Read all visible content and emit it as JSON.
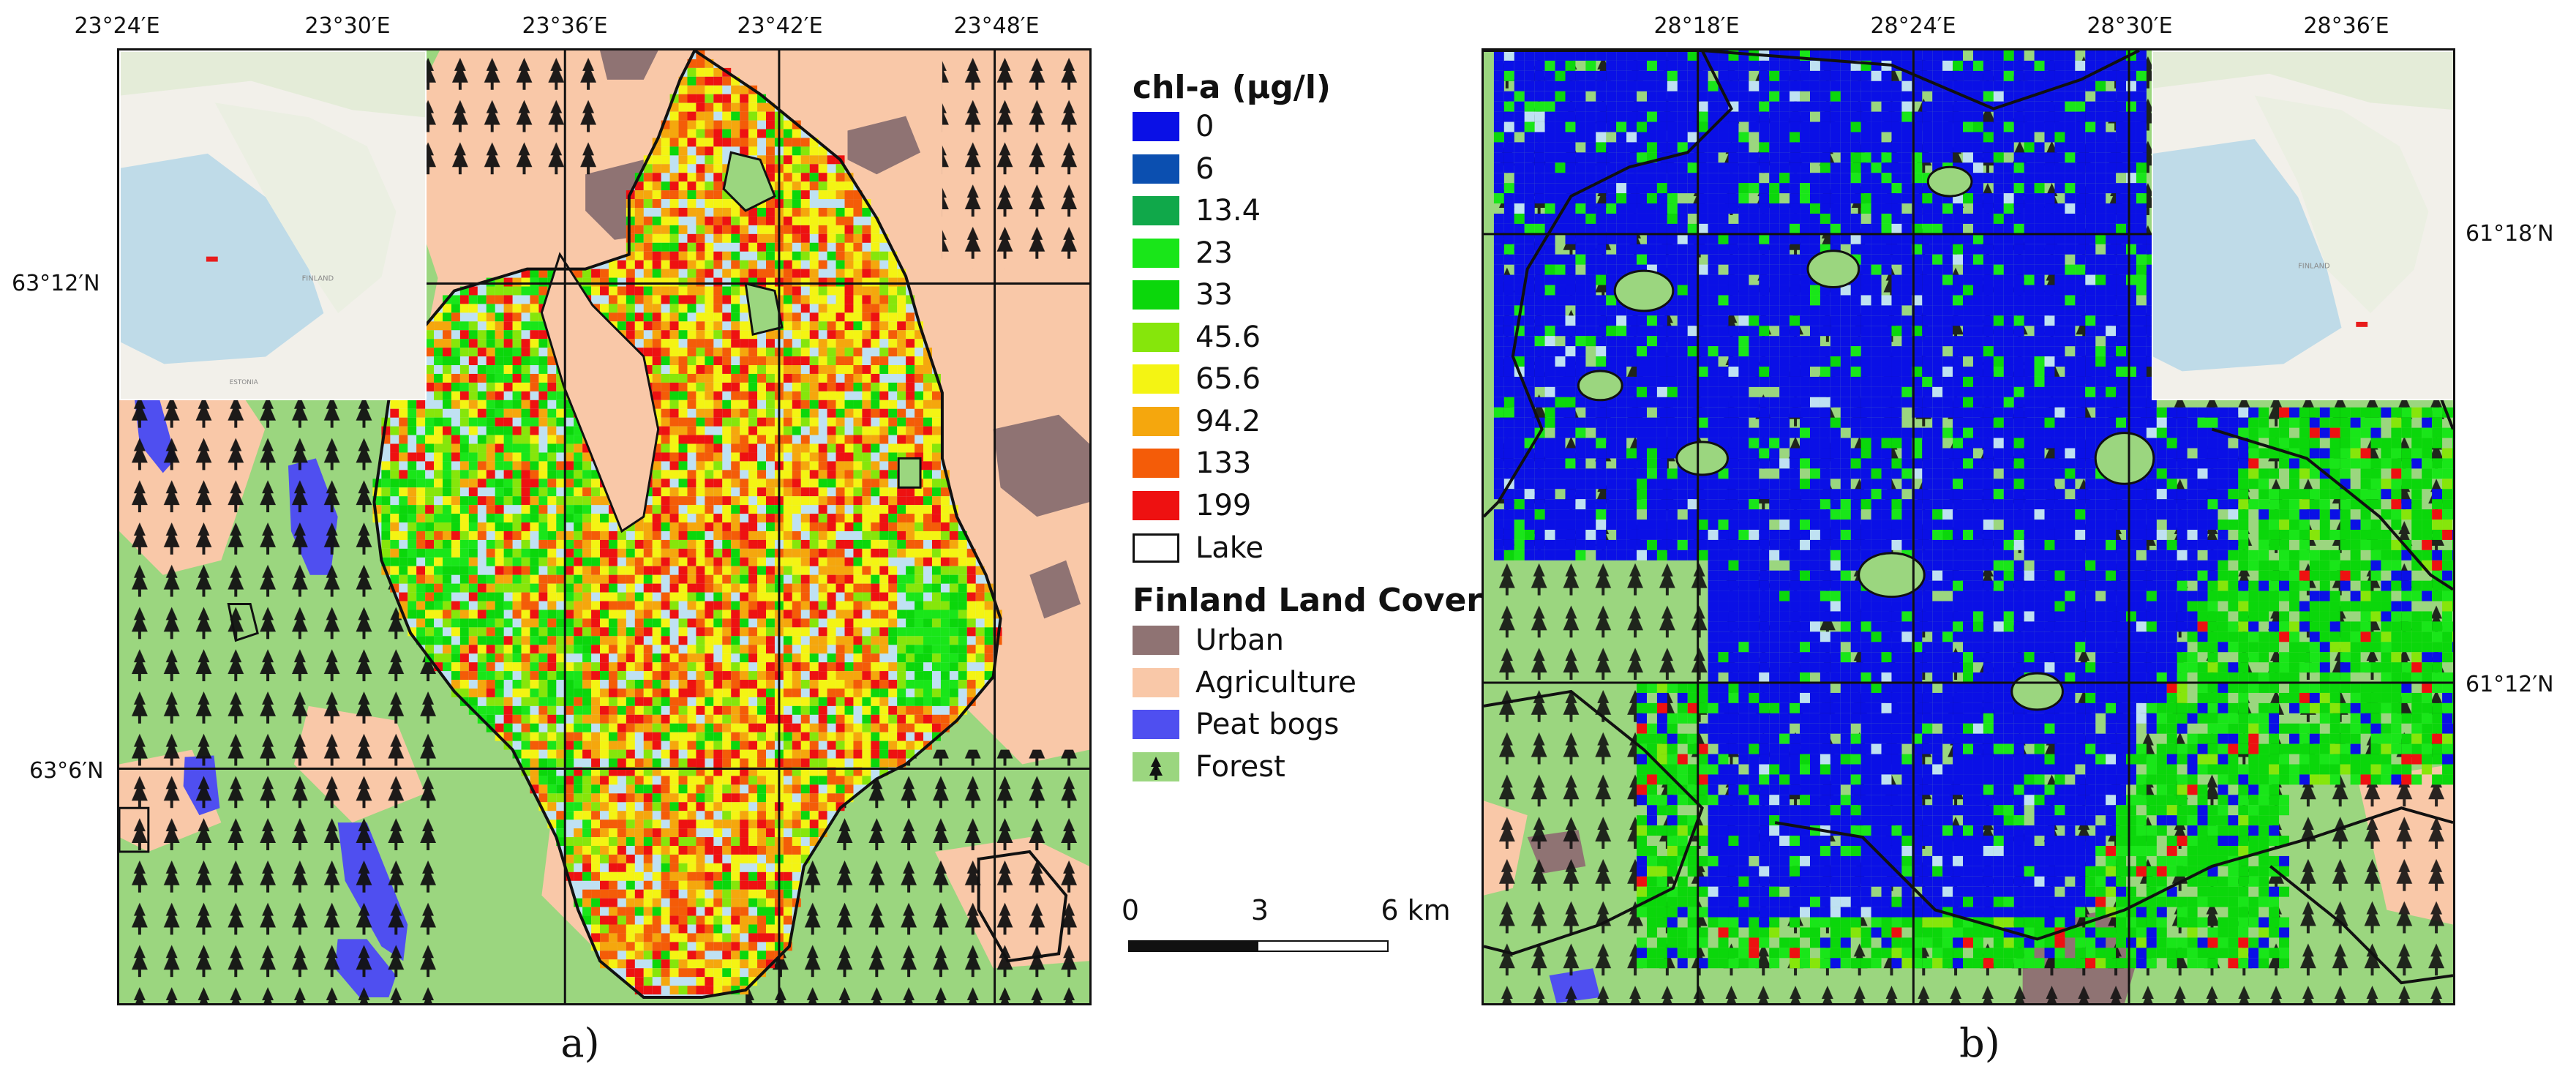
{
  "panels": {
    "a": {
      "label": "a)",
      "top_ticks": [
        "23°24′E",
        "23°30′E",
        "23°36′E",
        "23°42′E",
        "23°48′E"
      ],
      "left_ticks": [
        "63°12′N",
        "63°6′N"
      ]
    },
    "b": {
      "label": "b)",
      "top_ticks": [
        "28°18′E",
        "28°24′E",
        "28°30′E",
        "28°36′E"
      ],
      "right_ticks": [
        "61°18′N",
        "61°12′N"
      ]
    }
  },
  "legend": {
    "chl_title": "chl-a (μg/l)",
    "chl_classes": [
      {
        "label": "0",
        "color": "#0a10e6"
      },
      {
        "label": "6",
        "color": "#0b4fb0"
      },
      {
        "label": "13.4",
        "color": "#10a84a"
      },
      {
        "label": "23",
        "color": "#19e619"
      },
      {
        "label": "33",
        "color": "#0bd70b"
      },
      {
        "label": "45.6",
        "color": "#86e60b"
      },
      {
        "label": "65.6",
        "color": "#f4f413"
      },
      {
        "label": "94.2",
        "color": "#f5a70d"
      },
      {
        "label": "133",
        "color": "#f45c08"
      },
      {
        "label": "199",
        "color": "#ee1111"
      }
    ],
    "lake_label": "Lake",
    "landcover_title": "Finland Land Cover",
    "landcover_classes": [
      {
        "label": "Urban",
        "color": "#8f7373"
      },
      {
        "label": "Agriculture",
        "color": "#f9c8a8"
      },
      {
        "label": "Peat bogs",
        "color": "#4f4ff0"
      },
      {
        "label": "Forest",
        "color": "#9bd67f",
        "icon": "tree-icon"
      }
    ]
  },
  "scalebar": {
    "labels": [
      "0",
      "3",
      "6 km"
    ]
  },
  "inset_text": {
    "country": "FINLAND",
    "neighbor": "ESTONIA"
  }
}
